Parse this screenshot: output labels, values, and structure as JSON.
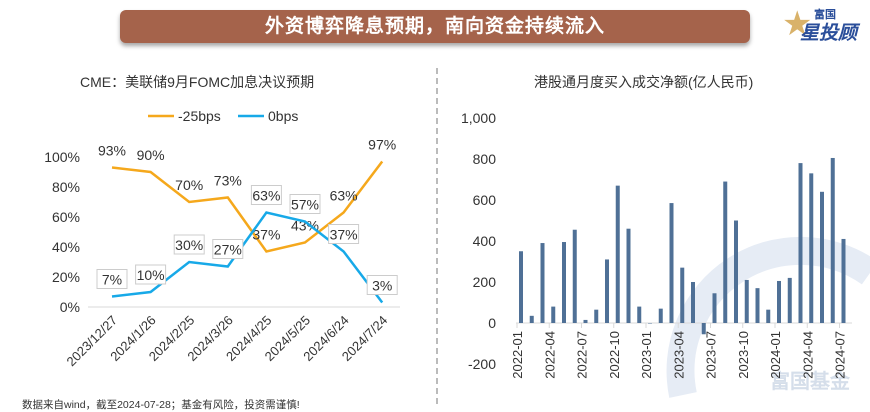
{
  "header": {
    "title": "外资博弈降息预期，南向资金持续流入",
    "logo_text_top": "富国",
    "logo_text_main": "星投顾"
  },
  "footer": "数据来自wind，截至2024-07-28；基金有风险，投资需谨慎!",
  "watermark": "富国基金",
  "colors": {
    "orange": "#F5A81C",
    "blue": "#17A9E8",
    "bar": "#4F7096",
    "banner": "#A5634B"
  },
  "chart_data": [
    {
      "type": "line",
      "title": "CME：美联储9月FOMC加息决议预期",
      "categories": [
        "2023/12/27",
        "2024/1/26",
        "2024/2/25",
        "2024/3/26",
        "2024/4/25",
        "2024/5/25",
        "2024/6/24",
        "2024/7/24"
      ],
      "series": [
        {
          "name": "-25bps",
          "values": [
            93,
            90,
            70,
            73,
            37,
            43,
            63,
            97
          ]
        },
        {
          "name": "0bps",
          "values": [
            7,
            10,
            30,
            27,
            63,
            57,
            37,
            3
          ]
        }
      ],
      "ylim": [
        0,
        100
      ],
      "yticks": [
        "0%",
        "20%",
        "40%",
        "60%",
        "80%",
        "100%"
      ],
      "legend": "top"
    },
    {
      "type": "bar",
      "title": "港股通月度买入成交净额(亿人民币)",
      "categories": [
        "2022-01",
        "2022-02",
        "2022-03",
        "2022-04",
        "2022-05",
        "2022-06",
        "2022-07",
        "2022-08",
        "2022-09",
        "2022-10",
        "2022-11",
        "2022-12",
        "2023-01",
        "2023-02",
        "2023-03",
        "2023-04",
        "2023-05",
        "2023-06",
        "2023-07",
        "2023-08",
        "2023-09",
        "2023-10",
        "2023-11",
        "2023-12",
        "2024-01",
        "2024-02",
        "2024-03",
        "2024-04",
        "2024-05",
        "2024-06",
        "2024-07"
      ],
      "values": [
        350,
        35,
        390,
        80,
        395,
        455,
        15,
        65,
        310,
        670,
        460,
        80,
        0,
        70,
        585,
        270,
        200,
        -55,
        145,
        690,
        500,
        210,
        170,
        65,
        205,
        220,
        780,
        730,
        640,
        805,
        410
      ],
      "xtick_labels": [
        "2022-01",
        "2022-04",
        "2022-07",
        "2022-10",
        "2023-01",
        "2023-04",
        "2023-07",
        "2023-10",
        "2024-01",
        "2024-04",
        "2024-07"
      ],
      "ylim": [
        -200,
        1000
      ],
      "yticks": [
        "-200",
        "0",
        "200",
        "400",
        "600",
        "800",
        "1,000"
      ]
    }
  ]
}
